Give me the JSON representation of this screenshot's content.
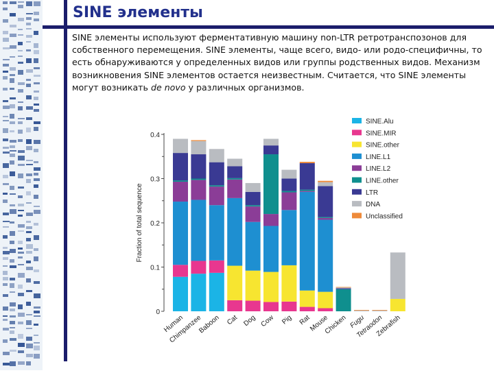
{
  "slide": {
    "title": "SINE элементы",
    "paragraph_before": "SINE элементы используют ферментативную машину non-LTR ретротранспозонов для собственного перемещения. SINE элементы, чаще всего, видо- или родо-специфичны, то есть обнаруживаются у определенных видов или группы родственных видов. Механизм возникновения SINE элементов остается неизвестным. Считается, что SINE элементы могут возникать ",
    "paragraph_italic": "de novo",
    "paragraph_after": " у различных организмов."
  },
  "colors": {
    "title": "#22308c",
    "frame": "#1b1d6b",
    "strip_background": "#eef3f8",
    "strip_bands": "#2a4d8f"
  },
  "chart_data": {
    "type": "bar",
    "stacked": true,
    "ylabel": "Fraction of total sequence",
    "ylim": [
      0,
      0.4
    ],
    "yticks": [
      0,
      0.1,
      0.2,
      0.3,
      0.4
    ],
    "legend_position": "top-right",
    "categories": [
      "Human",
      "Chimpanzee",
      "Baboon",
      "Cat",
      "Dog",
      "Cow",
      "Pig",
      "Rat",
      "Mouse",
      "Chicken",
      "Fugu",
      "Tetraodon",
      "Zebrafish"
    ],
    "italic_categories": [
      "Fugu",
      "Tetraodon"
    ],
    "series": [
      {
        "name": "SINE.Alu",
        "color": "#1bb4e6",
        "values": [
          0.078,
          0.085,
          0.087,
          0,
          0,
          0,
          0,
          0,
          0,
          0,
          0,
          0,
          0
        ]
      },
      {
        "name": "SINE.MIR",
        "color": "#e8378f",
        "values": [
          0.027,
          0.029,
          0.028,
          0.025,
          0.024,
          0.021,
          0.022,
          0.01,
          0.007,
          0,
          0,
          0,
          0
        ]
      },
      {
        "name": "SINE.other",
        "color": "#f7e530",
        "values": [
          0,
          0,
          0,
          0.078,
          0.068,
          0.068,
          0.082,
          0.037,
          0.037,
          0,
          0,
          0,
          0.028
        ]
      },
      {
        "name": "LINE.L1",
        "color": "#1e8fd1",
        "values": [
          0.143,
          0.138,
          0.125,
          0.153,
          0.11,
          0.104,
          0.125,
          0.223,
          0.163,
          0,
          0,
          0,
          0
        ]
      },
      {
        "name": "LINE.L2",
        "color": "#8b3d97",
        "values": [
          0.045,
          0.045,
          0.042,
          0.042,
          0.035,
          0.027,
          0.04,
          0.002,
          0.004,
          0,
          0,
          0,
          0
        ]
      },
      {
        "name": "LINE.other",
        "color": "#0f8f8e",
        "values": [
          0.003,
          0.003,
          0.003,
          0.003,
          0.003,
          0.135,
          0.003,
          0.003,
          0.002,
          0.05,
          0,
          0,
          0
        ]
      },
      {
        "name": "LTR",
        "color": "#3a3a93",
        "values": [
          0.062,
          0.055,
          0.052,
          0.027,
          0.03,
          0.02,
          0.028,
          0.06,
          0.07,
          0.002,
          0,
          0,
          0
        ]
      },
      {
        "name": "DNA",
        "color": "#b9bcc1",
        "values": [
          0.032,
          0.03,
          0.03,
          0.017,
          0.02,
          0.015,
          0.02,
          0.0,
          0.009,
          0.002,
          0.002,
          0.002,
          0.105
        ]
      },
      {
        "name": "Unclassified",
        "color": "#ee8a3a",
        "values": [
          0,
          0.002,
          0,
          0,
          0,
          0,
          0,
          0.003,
          0.003,
          0.001,
          0.001,
          0.001,
          0
        ]
      }
    ]
  }
}
